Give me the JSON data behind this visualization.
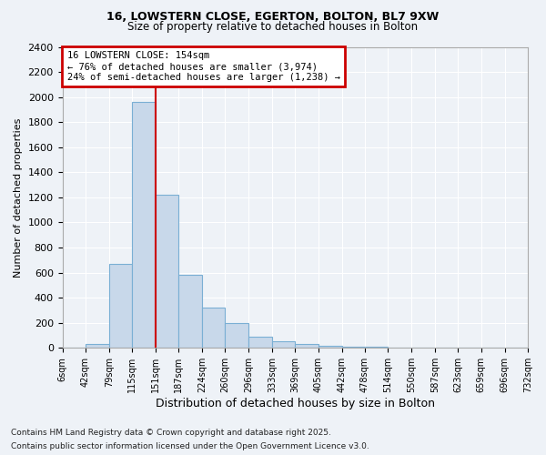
{
  "title1": "16, LOWSTERN CLOSE, EGERTON, BOLTON, BL7 9XW",
  "title2": "Size of property relative to detached houses in Bolton",
  "xlabel": "Distribution of detached houses by size in Bolton",
  "ylabel": "Number of detached properties",
  "bin_edges": [
    6,
    42,
    79,
    115,
    151,
    187,
    224,
    260,
    296,
    333,
    369,
    405,
    442,
    478,
    514,
    550,
    587,
    623,
    659,
    696,
    732
  ],
  "counts": [
    0,
    30,
    670,
    1960,
    1220,
    580,
    320,
    200,
    90,
    50,
    35,
    20,
    12,
    8,
    5,
    3,
    2,
    1,
    0,
    0
  ],
  "bar_color": "#c8d8ea",
  "bar_edge_color": "#7aafd4",
  "property_line_x": 151,
  "property_line_color": "#cc0000",
  "annotation_text": "16 LOWSTERN CLOSE: 154sqm\n← 76% of detached houses are smaller (3,974)\n24% of semi-detached houses are larger (1,238) →",
  "annotation_box_color": "#cc0000",
  "ylim": [
    0,
    2400
  ],
  "yticks": [
    0,
    200,
    400,
    600,
    800,
    1000,
    1200,
    1400,
    1600,
    1800,
    2000,
    2200,
    2400
  ],
  "xtick_labels": [
    "6sqm",
    "42sqm",
    "79sqm",
    "115sqm",
    "151sqm",
    "187sqm",
    "224sqm",
    "260sqm",
    "296sqm",
    "333sqm",
    "369sqm",
    "405sqm",
    "442sqm",
    "478sqm",
    "514sqm",
    "550sqm",
    "587sqm",
    "623sqm",
    "659sqm",
    "696sqm",
    "732sqm"
  ],
  "footer1": "Contains HM Land Registry data © Crown copyright and database right 2025.",
  "footer2": "Contains public sector information licensed under the Open Government Licence v3.0.",
  "background_color": "#eef2f7",
  "grid_color": "#ffffff",
  "figsize": [
    6.0,
    5.0
  ],
  "dpi": 100
}
